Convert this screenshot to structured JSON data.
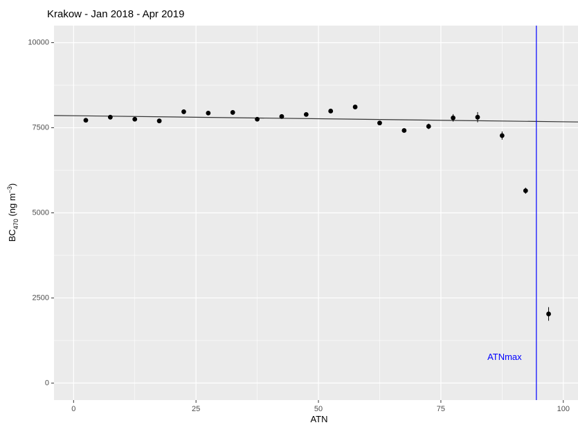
{
  "chart_data": {
    "type": "scatter",
    "title": "Krakow - Jan 2018 - Apr 2019",
    "xlabel": "ATN",
    "ylabel": {
      "main": "BC",
      "subscript": "470",
      "units_open": " (ng m",
      "units_sup": "−3",
      "units_close": ")"
    },
    "xlim": [
      -4,
      103
    ],
    "ylim": [
      -500,
      10500
    ],
    "x_ticks": [
      0,
      25,
      50,
      75,
      100
    ],
    "x_tick_labels": [
      "0",
      "25",
      "50",
      "75",
      "100"
    ],
    "y_ticks": [
      0,
      2500,
      5000,
      7500,
      10000
    ],
    "y_tick_labels": [
      "0",
      "2500",
      "5000",
      "7500",
      "10000"
    ],
    "grid": true,
    "background": "#ebebeb",
    "points": [
      {
        "x": 2.5,
        "y": 7720,
        "err": 60
      },
      {
        "x": 7.5,
        "y": 7810,
        "err": 50
      },
      {
        "x": 12.5,
        "y": 7750,
        "err": 60
      },
      {
        "x": 17.5,
        "y": 7700,
        "err": 50
      },
      {
        "x": 22.5,
        "y": 7970,
        "err": 50
      },
      {
        "x": 27.5,
        "y": 7930,
        "err": 50
      },
      {
        "x": 32.5,
        "y": 7950,
        "err": 50
      },
      {
        "x": 37.5,
        "y": 7750,
        "err": 50
      },
      {
        "x": 42.5,
        "y": 7830,
        "err": 50
      },
      {
        "x": 47.5,
        "y": 7890,
        "err": 50
      },
      {
        "x": 52.5,
        "y": 7990,
        "err": 50
      },
      {
        "x": 57.5,
        "y": 8110,
        "err": 60
      },
      {
        "x": 62.5,
        "y": 7640,
        "err": 60
      },
      {
        "x": 67.5,
        "y": 7420,
        "err": 60
      },
      {
        "x": 72.5,
        "y": 7540,
        "err": 80
      },
      {
        "x": 77.5,
        "y": 7790,
        "err": 110
      },
      {
        "x": 82.5,
        "y": 7810,
        "err": 150
      },
      {
        "x": 87.5,
        "y": 7270,
        "err": 120
      },
      {
        "x": 92.3,
        "y": 5650,
        "err": 90
      },
      {
        "x": 97.0,
        "y": 2030,
        "err": 200
      }
    ],
    "fit_line": {
      "x": [
        -4,
        103
      ],
      "y": [
        7860,
        7670
      ],
      "color": "#333333"
    },
    "vline": {
      "x": 94.5,
      "color": "#0000ff",
      "label": "ATNmax",
      "label_x": 88,
      "label_y": 750
    }
  }
}
